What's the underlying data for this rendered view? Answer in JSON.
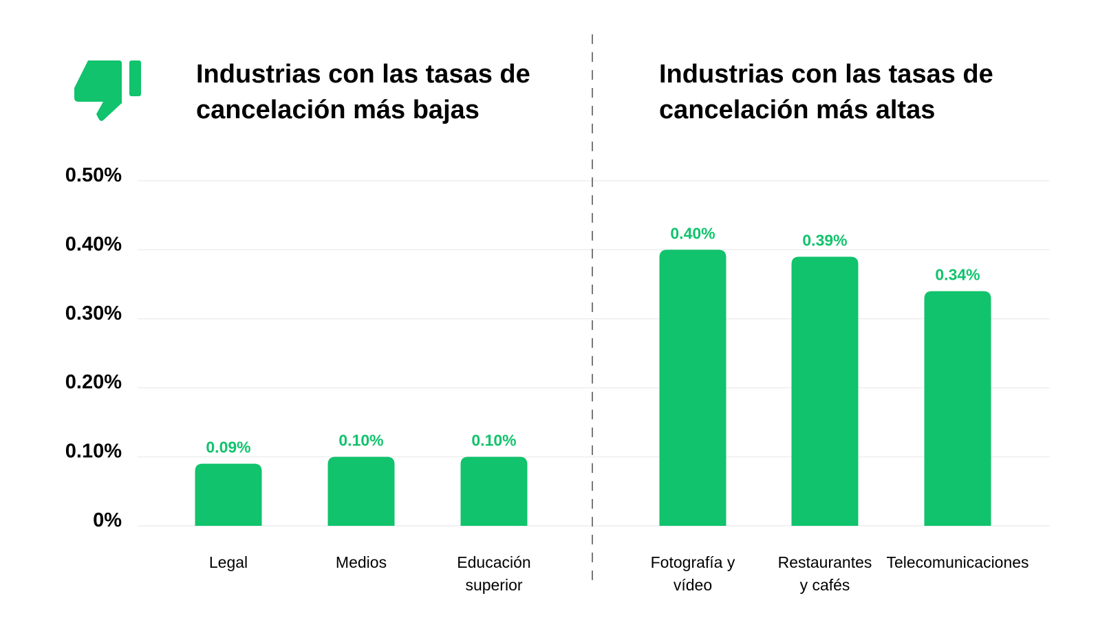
{
  "colors": {
    "bar": "#10C36C",
    "value_label": "#10C36C",
    "grid": "#EEEEEE",
    "divider": "#777777",
    "text": "#000000"
  },
  "icon": "thumbs-down-icon",
  "chart_data": [
    {
      "type": "bar",
      "title_lines": [
        "Industrias con las tasas de",
        "cancelación más bajas"
      ],
      "categories": [
        [
          "Legal"
        ],
        [
          "Medios"
        ],
        [
          "Educación",
          "superior"
        ]
      ],
      "values": [
        0.09,
        0.1,
        0.1
      ],
      "value_labels": [
        "0.09%",
        "0.10%",
        "0.10%"
      ],
      "ylim": [
        0,
        0.5
      ],
      "yticks": [
        0,
        0.1,
        0.2,
        0.3,
        0.4,
        0.5
      ],
      "ytick_labels": [
        "0%",
        "0.10%",
        "0.20%",
        "0.30%",
        "0.40%",
        "0.50%"
      ],
      "grid": true
    },
    {
      "type": "bar",
      "title_lines": [
        "Industrias con las tasas de",
        "cancelación más altas"
      ],
      "categories": [
        [
          "Fotografía y",
          "vídeo"
        ],
        [
          "Restaurantes",
          "y cafés"
        ],
        [
          "Telecomunicaciones"
        ]
      ],
      "values": [
        0.4,
        0.39,
        0.34
      ],
      "value_labels": [
        "0.40%",
        "0.39%",
        "0.34%"
      ],
      "ylim": [
        0,
        0.5
      ],
      "grid": true
    }
  ]
}
